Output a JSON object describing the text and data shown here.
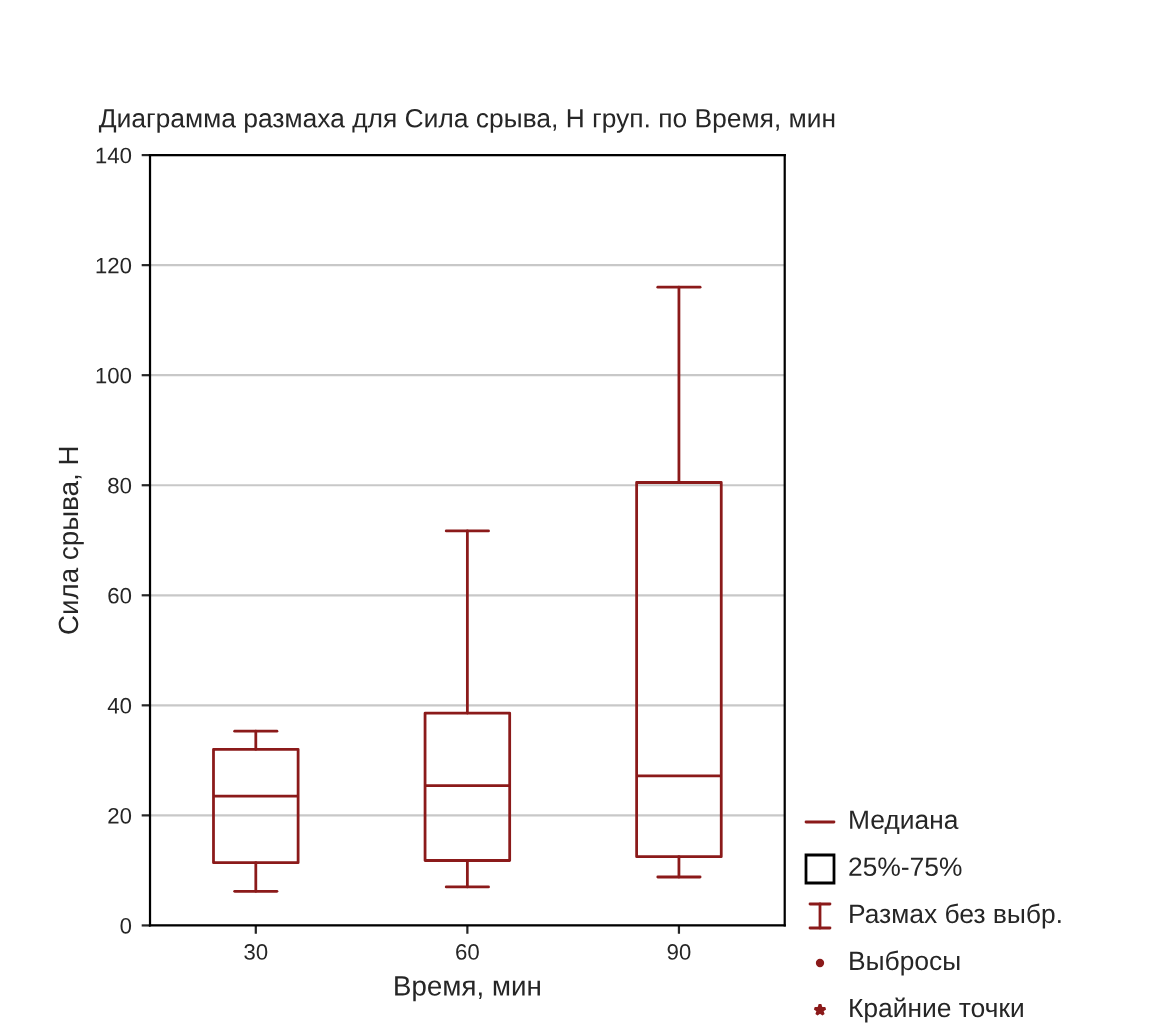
{
  "chart_data": {
    "type": "box",
    "title": "Диаграмма размаха для Сила срыва, Н груп. по Время, мин",
    "xlabel": "Время, мин",
    "ylabel": "Сила срыва, Н",
    "categories": [
      "30",
      "60",
      "90"
    ],
    "boxes": [
      {
        "low": 6.2,
        "q1": 11.4,
        "median": 23.5,
        "q3": 32,
        "high": 35.3
      },
      {
        "low": 7,
        "q1": 11.8,
        "median": 25.4,
        "q3": 38.6,
        "high": 71.7
      },
      {
        "low": 8.8,
        "q1": 12.5,
        "median": 27.2,
        "q3": 80.5,
        "high": 116
      }
    ],
    "color": "#8b1a1a",
    "ylim": [
      0,
      140
    ],
    "yticks": [
      0,
      20,
      40,
      60,
      80,
      100,
      120,
      140
    ],
    "grid": "y",
    "annotations": [
      "Медиана",
      "25%-75%",
      "Размах без выбр.",
      "Выбросы",
      "Крайние точки"
    ]
  }
}
